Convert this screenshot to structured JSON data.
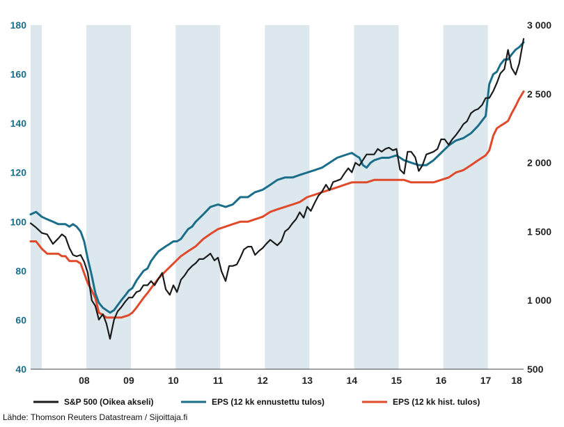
{
  "colors": {
    "sp500": "#1a1a1a",
    "eps_forward": "#1a6e8a",
    "eps_hist": "#e04a2a",
    "shade": "#dce8ee",
    "left_axis_text": "#1a6e8a",
    "right_axis_text": "#222222"
  },
  "source": "Lähde: Thomson Reuters Datastream / Sijoittaja.fi",
  "chart_data": {
    "type": "line",
    "title": "",
    "xlabel": "",
    "ylabel_left": "",
    "ylabel_right": "",
    "x_range": [
      2007.3,
      2018.35
    ],
    "y_left_range": [
      40,
      180
    ],
    "y_right_range": [
      500,
      3000
    ],
    "y_left_ticks": [
      40,
      60,
      80,
      100,
      120,
      140,
      160,
      180
    ],
    "y_left_tick_labels": [
      "40",
      "60",
      "80",
      "100",
      "120",
      "140",
      "160",
      "180"
    ],
    "y_right_ticks": [
      500,
      1000,
      1500,
      2000,
      2500,
      3000
    ],
    "y_right_tick_labels": [
      "500",
      "1 000",
      "1 500",
      "2 000",
      "2 500",
      "3 000"
    ],
    "x_tick_positions": [
      2008.5,
      2009.5,
      2010.5,
      2011.5,
      2012.5,
      2013.5,
      2014.5,
      2015.5,
      2016.5,
      2017.5,
      2018.5
    ],
    "x_tick_labels": [
      "08",
      "09",
      "10",
      "11",
      "12",
      "13",
      "14",
      "15",
      "16",
      "17",
      "18"
    ],
    "shaded_periods": [
      [
        2007.3,
        2007.55
      ],
      [
        2008.55,
        2009.55
      ],
      [
        2010.55,
        2011.55
      ],
      [
        2012.55,
        2013.55
      ],
      [
        2014.55,
        2015.55
      ],
      [
        2016.55,
        2017.55
      ]
    ],
    "grid": false,
    "legend_position": "bottom",
    "series": [
      {
        "name": "S&P 500 (Oikea akseli)",
        "axis": "right",
        "color": "#1a1a1a",
        "x": [
          2007.3,
          2007.42,
          2007.55,
          2007.67,
          2007.8,
          2007.92,
          2008.0,
          2008.08,
          2008.17,
          2008.25,
          2008.33,
          2008.42,
          2008.5,
          2008.58,
          2008.67,
          2008.75,
          2008.83,
          2008.92,
          2009.0,
          2009.08,
          2009.17,
          2009.25,
          2009.33,
          2009.42,
          2009.5,
          2009.58,
          2009.67,
          2009.75,
          2009.83,
          2009.92,
          2010.0,
          2010.08,
          2010.17,
          2010.25,
          2010.33,
          2010.42,
          2010.5,
          2010.58,
          2010.67,
          2010.75,
          2010.83,
          2010.92,
          2011.0,
          2011.08,
          2011.17,
          2011.25,
          2011.33,
          2011.42,
          2011.5,
          2011.58,
          2011.67,
          2011.75,
          2011.83,
          2011.92,
          2012.0,
          2012.08,
          2012.17,
          2012.25,
          2012.33,
          2012.42,
          2012.5,
          2012.58,
          2012.67,
          2012.75,
          2012.83,
          2012.92,
          2013.0,
          2013.08,
          2013.17,
          2013.25,
          2013.33,
          2013.42,
          2013.5,
          2013.58,
          2013.67,
          2013.75,
          2013.83,
          2013.92,
          2014.0,
          2014.08,
          2014.17,
          2014.25,
          2014.33,
          2014.42,
          2014.5,
          2014.58,
          2014.67,
          2014.75,
          2014.83,
          2014.92,
          2015.0,
          2015.08,
          2015.17,
          2015.25,
          2015.33,
          2015.42,
          2015.5,
          2015.58,
          2015.67,
          2015.75,
          2015.83,
          2015.92,
          2016.0,
          2016.08,
          2016.17,
          2016.25,
          2016.33,
          2016.42,
          2016.5,
          2016.58,
          2016.67,
          2016.75,
          2016.83,
          2016.92,
          2017.0,
          2017.08,
          2017.17,
          2017.25,
          2017.33,
          2017.42,
          2017.5,
          2017.58,
          2017.67,
          2017.75,
          2017.83,
          2017.92,
          2018.0,
          2018.08,
          2018.17,
          2018.25,
          2018.35
        ],
        "values": [
          1560,
          1530,
          1490,
          1480,
          1410,
          1450,
          1480,
          1460,
          1380,
          1330,
          1320,
          1330,
          1280,
          1200,
          1000,
          960,
          860,
          900,
          830,
          720,
          860,
          920,
          950,
          990,
          1020,
          1020,
          1060,
          1070,
          1110,
          1110,
          1140,
          1110,
          1160,
          1200,
          1080,
          1040,
          1110,
          1060,
          1150,
          1180,
          1220,
          1250,
          1270,
          1300,
          1300,
          1320,
          1340,
          1290,
          1310,
          1210,
          1140,
          1250,
          1250,
          1260,
          1310,
          1370,
          1390,
          1390,
          1330,
          1360,
          1380,
          1410,
          1440,
          1420,
          1400,
          1430,
          1500,
          1520,
          1560,
          1590,
          1640,
          1600,
          1680,
          1650,
          1710,
          1760,
          1790,
          1840,
          1800,
          1860,
          1870,
          1880,
          1920,
          1960,
          1930,
          2000,
          1980,
          2020,
          2060,
          2060,
          2060,
          2100,
          2080,
          2100,
          2110,
          2090,
          2100,
          1950,
          1920,
          2080,
          2080,
          2040,
          1940,
          1980,
          2060,
          2070,
          2080,
          2100,
          2170,
          2170,
          2130,
          2170,
          2200,
          2240,
          2280,
          2300,
          2360,
          2380,
          2390,
          2420,
          2470,
          2470,
          2520,
          2580,
          2650,
          2680,
          2820,
          2690,
          2640,
          2720,
          2900
        ]
      },
      {
        "name": "EPS (12 kk ennustettu tulos)",
        "axis": "left",
        "color": "#1a6e8a",
        "x": [
          2007.3,
          2007.42,
          2007.55,
          2007.67,
          2007.8,
          2007.92,
          2008.0,
          2008.08,
          2008.17,
          2008.25,
          2008.33,
          2008.42,
          2008.5,
          2008.58,
          2008.67,
          2008.75,
          2008.83,
          2008.92,
          2009.0,
          2009.08,
          2009.17,
          2009.25,
          2009.33,
          2009.42,
          2009.5,
          2009.58,
          2009.67,
          2009.75,
          2009.83,
          2009.92,
          2010.0,
          2010.08,
          2010.17,
          2010.25,
          2010.33,
          2010.42,
          2010.5,
          2010.58,
          2010.67,
          2010.75,
          2010.83,
          2010.92,
          2011.0,
          2011.17,
          2011.33,
          2011.5,
          2011.67,
          2011.83,
          2012.0,
          2012.17,
          2012.33,
          2012.5,
          2012.67,
          2012.83,
          2013.0,
          2013.17,
          2013.33,
          2013.5,
          2013.67,
          2013.83,
          2014.0,
          2014.17,
          2014.33,
          2014.5,
          2014.58,
          2014.67,
          2014.75,
          2014.83,
          2014.92,
          2015.0,
          2015.17,
          2015.33,
          2015.5,
          2015.67,
          2015.83,
          2016.0,
          2016.17,
          2016.33,
          2016.5,
          2016.67,
          2016.83,
          2017.0,
          2017.17,
          2017.33,
          2017.5,
          2017.58,
          2017.67,
          2017.75,
          2017.83,
          2017.92,
          2018.0,
          2018.08,
          2018.17,
          2018.25,
          2018.35
        ],
        "values": [
          103,
          104,
          102,
          101,
          100,
          99,
          99,
          99,
          98,
          99,
          98,
          96,
          92,
          85,
          78,
          71,
          67,
          65,
          64,
          63,
          64,
          66,
          68,
          70,
          72,
          73,
          76,
          78,
          80,
          81,
          84,
          86,
          88,
          89,
          90,
          91,
          92,
          92,
          93,
          95,
          97,
          98,
          100,
          103,
          106,
          107,
          106,
          107,
          110,
          110,
          112,
          113,
          115,
          117,
          118,
          118,
          119,
          120,
          121,
          122,
          124,
          126,
          127,
          128,
          127,
          126,
          123,
          122,
          124,
          125,
          126,
          126,
          127,
          125,
          124,
          123,
          123,
          125,
          128,
          131,
          133,
          134,
          136,
          139,
          143,
          156,
          160,
          161,
          164,
          166,
          166,
          168,
          170,
          171,
          173
        ]
      },
      {
        "name": "EPS (12 kk hist. tulos)",
        "axis": "left",
        "color": "#e04a2a",
        "x": [
          2007.3,
          2007.42,
          2007.55,
          2007.67,
          2007.8,
          2007.92,
          2008.0,
          2008.08,
          2008.17,
          2008.25,
          2008.33,
          2008.42,
          2008.5,
          2008.58,
          2008.67,
          2008.75,
          2008.83,
          2008.92,
          2009.0,
          2009.17,
          2009.33,
          2009.5,
          2009.58,
          2009.67,
          2009.75,
          2009.83,
          2009.92,
          2010.0,
          2010.17,
          2010.33,
          2010.5,
          2010.67,
          2010.83,
          2011.0,
          2011.17,
          2011.33,
          2011.5,
          2011.67,
          2011.83,
          2012.0,
          2012.17,
          2012.33,
          2012.5,
          2012.67,
          2012.83,
          2013.0,
          2013.17,
          2013.33,
          2013.5,
          2013.67,
          2013.83,
          2014.0,
          2014.17,
          2014.33,
          2014.5,
          2014.67,
          2014.83,
          2015.0,
          2015.17,
          2015.33,
          2015.5,
          2015.67,
          2015.83,
          2016.0,
          2016.17,
          2016.33,
          2016.5,
          2016.67,
          2016.83,
          2017.0,
          2017.17,
          2017.33,
          2017.5,
          2017.58,
          2017.67,
          2017.75,
          2017.83,
          2017.92,
          2018.0,
          2018.08,
          2018.17,
          2018.25,
          2018.35
        ],
        "values": [
          92,
          92,
          89,
          87,
          87,
          87,
          86,
          86,
          84,
          84,
          84,
          83,
          79,
          75,
          72,
          69,
          63,
          62,
          61,
          61,
          61,
          62,
          63,
          65,
          67,
          69,
          71,
          73,
          77,
          80,
          83,
          86,
          88,
          90,
          93,
          95,
          97,
          98,
          99,
          100,
          100,
          101,
          102,
          104,
          105,
          106,
          107,
          108,
          110,
          111,
          112,
          113,
          114,
          115,
          116,
          116,
          116,
          117,
          117,
          117,
          117,
          117,
          116,
          116,
          116,
          116,
          117,
          118,
          120,
          121,
          123,
          125,
          127,
          129,
          135,
          138,
          139,
          140,
          141,
          144,
          147,
          150,
          153
        ]
      }
    ]
  }
}
